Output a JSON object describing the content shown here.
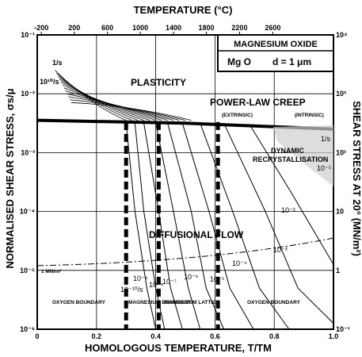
{
  "chart_data": {
    "type": "line",
    "title": "",
    "legend_box": {
      "title": "MAGNESIUM OXIDE",
      "material": "Mg O",
      "grain_size": "d = 1 μm"
    },
    "xlabel": "HOMOLOGOUS TEMPERATURE, T/TM",
    "ylabel_left": "NORMALISED SHEAR STRESS, σs/μ",
    "ylabel_right": "SHEAR STRESS AT 20° (MN/m²)",
    "x2label": "TEMPERATURE (°C)",
    "xlim": [
      0,
      1.0
    ],
    "ylim": [
      -6,
      -1
    ],
    "yscale": "log",
    "x_ticks": [
      "0",
      "0.2",
      "0.4",
      "0.6",
      "0.8",
      "1.0"
    ],
    "y_ticks_left": [
      "10⁻¹",
      "10⁻²",
      "10⁻³",
      "10⁻⁴",
      "10⁻⁵",
      "10⁻⁶"
    ],
    "y_ticks_right": [
      "10⁴",
      "10³",
      "10²",
      "10",
      "1",
      "10⁻¹"
    ],
    "top_ticks": [
      "-200",
      "200",
      "600",
      "1000",
      "1400",
      "1800",
      "2200",
      "2600"
    ],
    "top_ticks_x": [
      0.014,
      0.125,
      0.237,
      0.348,
      0.46,
      0.571,
      0.683,
      0.795
    ],
    "regions": {
      "plasticity": "PLASTICITY",
      "power_law_creep": "POWER-LAW CREEP",
      "extrinsic": "(EXTRINSIC)",
      "intrinsic": "(INTRINSIC)",
      "dynamic_recrystallisation_1": "DYNAMIC",
      "dynamic_recrystallisation_2": "RECRYSTALLISATION",
      "diffusional_flow": "DIFFUSIONAL  FLOW",
      "oxygen_boundary_left": "OXYGEN BOUNDARY",
      "magnesium_boundary": "MAGNESIUM BOUNDARY",
      "magnesium_lattice": "MAGNESIUM LATTICE",
      "oxygen_boundary_right": "OXYGEN BOUNDARY"
    },
    "reference_line_label": "1 MN/m²",
    "strain_rate_top_labels": [
      "1/s",
      "10¹⁰/s"
    ],
    "strain_rate_labels": [
      "10⁻¹",
      "10⁻²",
      "10⁻³",
      "10⁻⁴",
      "10⁻⁵",
      "10⁻⁶",
      "10⁻⁷",
      "10⁻⁸",
      "10⁻⁹",
      "10⁻¹⁰/s",
      "1/s"
    ],
    "field_boundaries": [
      {
        "name": "plasticity-creep",
        "x": [
          0.0,
          0.5,
          1.0
        ],
        "y": [
          -2.45,
          -2.5,
          -2.6
        ]
      },
      {
        "name": "creep-diffusional",
        "x": [
          0.3,
          0.41,
          0.61
        ],
        "y": [
          -2.45,
          -2.5,
          -2.55
        ]
      }
    ],
    "vertical_boundaries_x": [
      0.3,
      0.41,
      0.61
    ],
    "strain_rate_contours": [
      {
        "rate": "10⁻¹⁰",
        "x": [
          0.3,
          0.33,
          0.37,
          0.4
        ],
        "y": [
          -2.5,
          -4.0,
          -5.3,
          -6.0
        ]
      },
      {
        "rate": "10⁻⁹",
        "x": [
          0.33,
          0.36,
          0.4,
          0.43
        ],
        "y": [
          -2.5,
          -4.0,
          -5.3,
          -6.0
        ]
      },
      {
        "rate": "10⁻⁸",
        "x": [
          0.36,
          0.41,
          0.45,
          0.49
        ],
        "y": [
          -2.5,
          -4.0,
          -5.3,
          -6.0
        ]
      },
      {
        "rate": "10⁻⁷",
        "x": [
          0.4,
          0.46,
          0.51,
          0.55
        ],
        "y": [
          -2.5,
          -4.0,
          -5.3,
          -6.0
        ]
      },
      {
        "rate": "10⁻⁶",
        "x": [
          0.44,
          0.52,
          0.57,
          0.63
        ],
        "y": [
          -2.5,
          -4.0,
          -5.3,
          -6.0
        ]
      },
      {
        "rate": "10⁻⁵",
        "x": [
          0.49,
          0.58,
          0.65,
          0.73
        ],
        "y": [
          -2.5,
          -4.0,
          -5.3,
          -6.0
        ]
      },
      {
        "rate": "10⁻⁴",
        "x": [
          0.55,
          0.66,
          0.75,
          0.85
        ],
        "y": [
          -2.5,
          -4.0,
          -5.3,
          -6.0
        ]
      },
      {
        "rate": "10⁻³",
        "x": [
          0.63,
          0.77,
          0.88,
          1.0
        ],
        "y": [
          -2.5,
          -4.0,
          -5.3,
          -5.9
        ]
      },
      {
        "rate": "10⁻²",
        "x": [
          0.72,
          0.86,
          1.0
        ],
        "y": [
          -2.55,
          -3.7,
          -4.9
        ]
      }
    ]
  }
}
